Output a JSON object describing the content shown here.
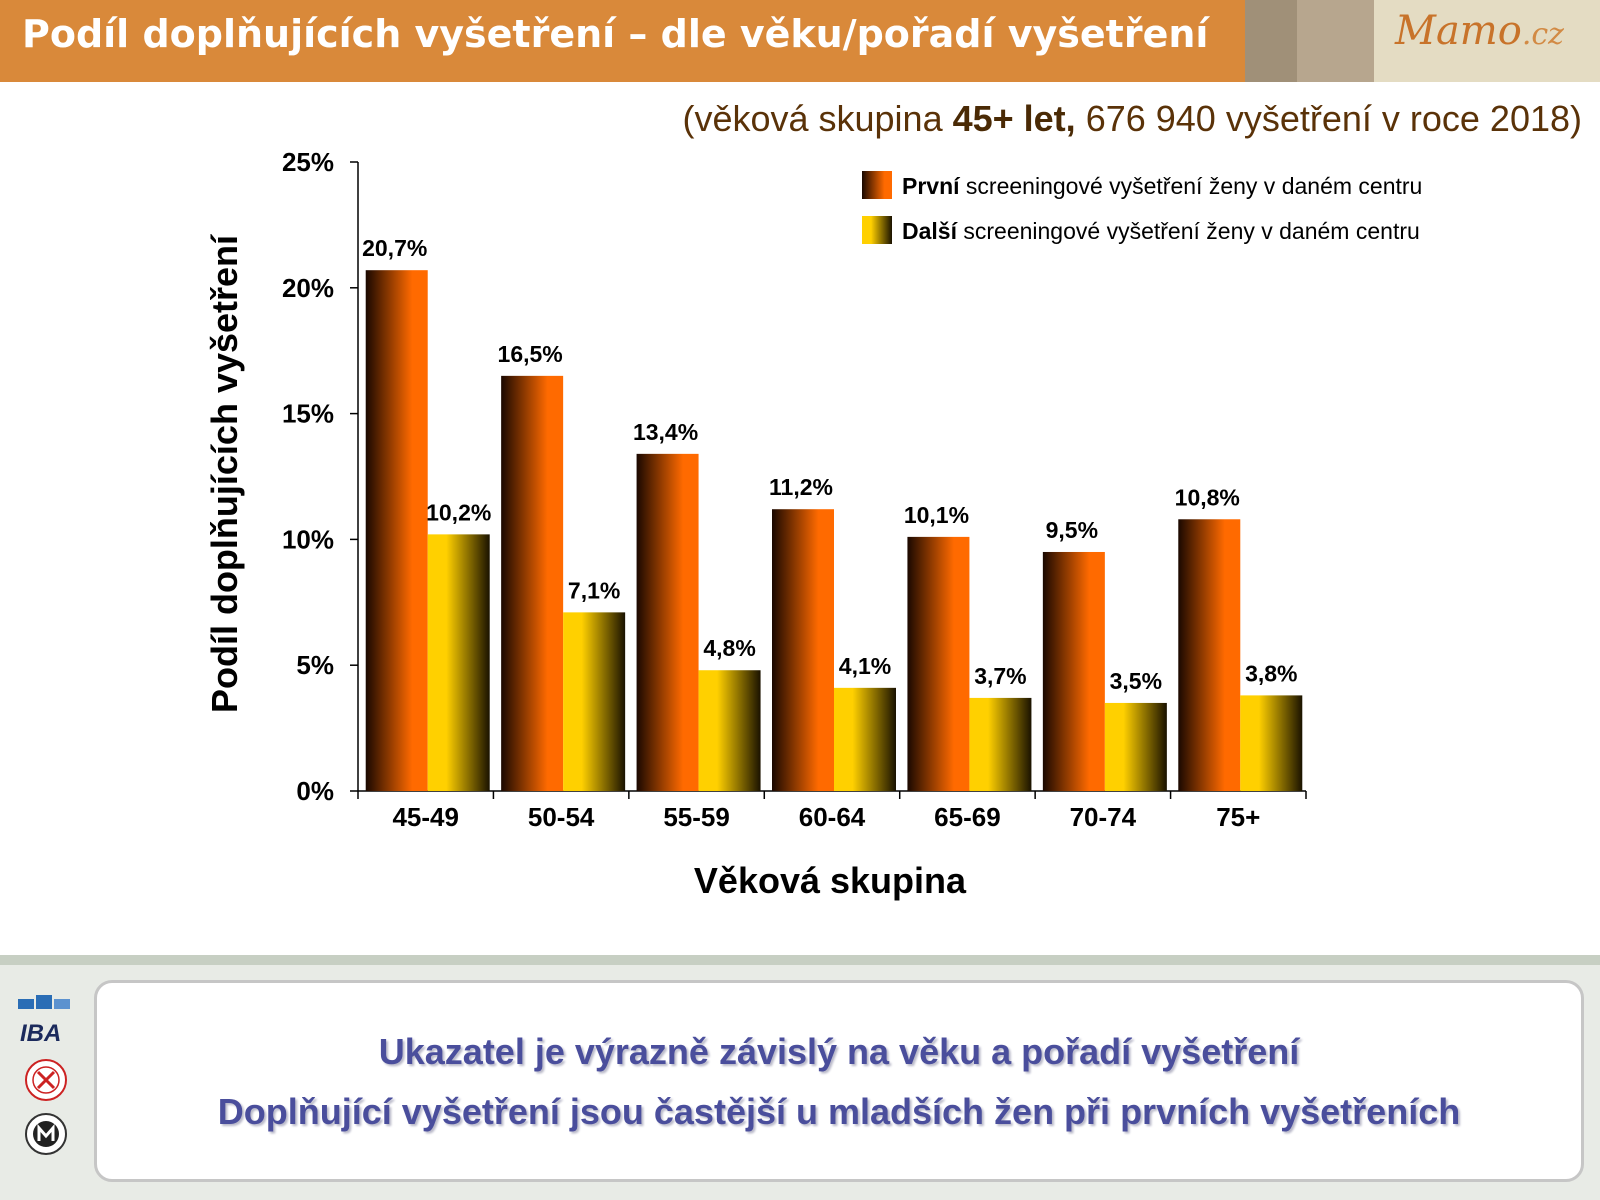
{
  "header": {
    "title": "Podíl doplňujících vyšetření – dle věku/pořadí vyšetření",
    "logo_text": "Mamo",
    "logo_suffix": ".cz"
  },
  "subtitle": {
    "prefix": "(věková skupina ",
    "bold": "45+ let,",
    "suffix": " 676 940 vyšetření v roce 2018)"
  },
  "chart_data": {
    "type": "bar",
    "categories": [
      "45-49",
      "50-54",
      "55-59",
      "60-64",
      "65-69",
      "70-74",
      "75+"
    ],
    "series": [
      {
        "name_bold": "První",
        "name_rest": " screeningové vyšetření ženy v daném centru",
        "values": [
          20.7,
          16.5,
          13.4,
          11.2,
          10.1,
          9.5,
          10.8
        ],
        "labels": [
          "20,7%",
          "16,5%",
          "13,4%",
          "11,2%",
          "10,1%",
          "9,5%",
          "10,8%"
        ],
        "color_dark": "#1a0800",
        "color_light": "#ff6a00"
      },
      {
        "name_bold": "Další",
        "name_rest": " screeningové vyšetření ženy v daném centru",
        "values": [
          10.2,
          7.1,
          4.8,
          4.1,
          3.7,
          3.5,
          3.8
        ],
        "labels": [
          "10,2%",
          "7,1%",
          "4,8%",
          "4,1%",
          "3,7%",
          "3,5%",
          "3,8%"
        ],
        "color_dark": "#1a1200",
        "color_light": "#ffd000"
      }
    ],
    "yticks": [
      0,
      5,
      10,
      15,
      20,
      25
    ],
    "ytick_labels": [
      "0%",
      "5%",
      "10%",
      "15%",
      "20%",
      "25%"
    ],
    "ylim": [
      0,
      25
    ],
    "xlabel": "Věková skupina",
    "ylabel": "Podíl doplňujících vyšetření",
    "legend_position": "top-right",
    "grid": false
  },
  "conclusions": {
    "line1": "Ukazatel je výrazně závislý na věku a pořadí vyšetření",
    "line2": "Doplňující vyšetření jsou častější u mladších žen při prvních vyšetřeních"
  },
  "footer_logos": {
    "iba": "IBA"
  }
}
